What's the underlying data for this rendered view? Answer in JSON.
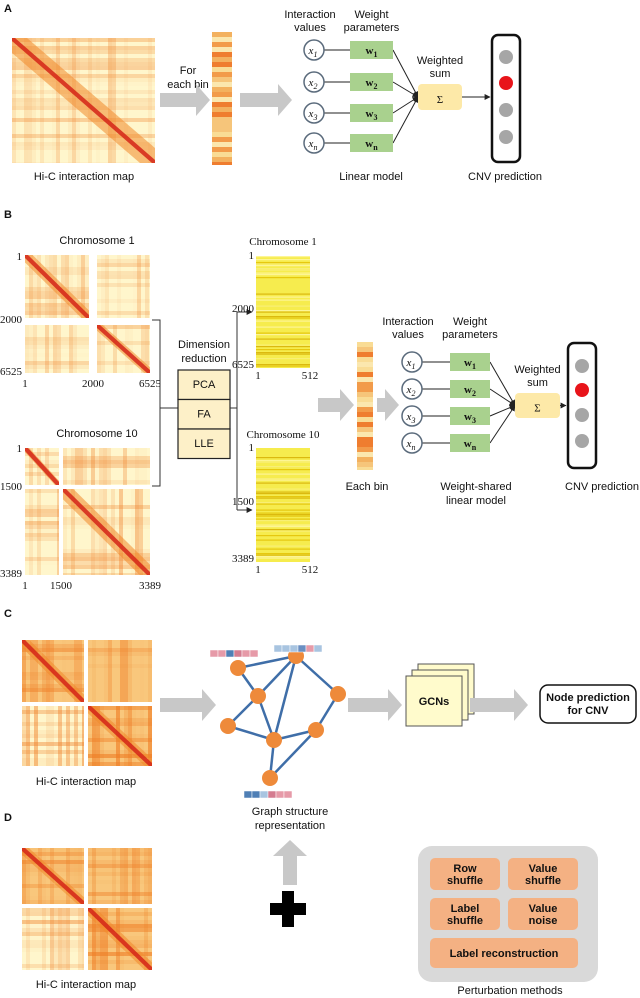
{
  "panel_a": {
    "label": "A",
    "heatmap_caption": "Hi-C interaction map",
    "bin_arrow_label": [
      "For",
      "each bin"
    ],
    "input_header": [
      "Interaction",
      "values"
    ],
    "weight_header": [
      "Weight",
      "parameters"
    ],
    "input_symbol": "x",
    "weight_symbol": "w",
    "indices": [
      "1",
      "2",
      "3",
      "n"
    ],
    "sum_label": [
      "Weighted",
      "sum"
    ],
    "sum_symbol": "Σ",
    "model_caption": [
      "Linear model"
    ],
    "output_caption": "CNV prediction"
  },
  "panel_b": {
    "label": "B",
    "chromosomes": [
      {
        "title": "Chromosome 1",
        "ticks": [
          "1",
          "2000",
          "6525"
        ]
      },
      {
        "title": "Chromosome 10",
        "ticks": [
          "1",
          "1500",
          "3389"
        ]
      }
    ],
    "reduction_label": [
      "Dimension",
      "reduction"
    ],
    "methods": [
      "PCA",
      "FA",
      "LLE"
    ],
    "reduced": [
      {
        "title": "Chromosome 1",
        "y_ticks": [
          "1",
          "2000",
          "6525"
        ],
        "x_ticks": [
          "1",
          "512"
        ]
      },
      {
        "title": "Chromosome 10",
        "y_ticks": [
          "1",
          "1500",
          "3389"
        ],
        "x_ticks": [
          "1",
          "512"
        ]
      }
    ],
    "bin_caption": "Each bin",
    "input_header": [
      "Interaction",
      "values"
    ],
    "weight_header": [
      "Weight",
      "parameters"
    ],
    "input_symbol": "x",
    "weight_symbol": "w",
    "indices": [
      "1",
      "2",
      "3",
      "n"
    ],
    "sum_label": [
      "Weighted",
      "sum"
    ],
    "sum_symbol": "Σ",
    "model_caption": [
      "Weight-shared",
      "linear model"
    ],
    "output_caption": "CNV prediction"
  },
  "panel_c": {
    "label": "C",
    "heatmap_caption": "Hi-C interaction map",
    "graph_caption": [
      "Graph structure",
      "representation"
    ],
    "model_label": "GCNs",
    "output_label": [
      "Node prediction",
      "for CNV"
    ]
  },
  "panel_d": {
    "label": "D",
    "heatmap_caption": "Hi-C interaction map",
    "methods": [
      [
        "Row",
        "shuffle"
      ],
      [
        "Value",
        "shuffle"
      ],
      [
        "Label",
        "shuffle"
      ],
      [
        "Value",
        "noise"
      ],
      [
        "Label reconstruction"
      ]
    ],
    "caption": "Perturbation methods"
  }
}
